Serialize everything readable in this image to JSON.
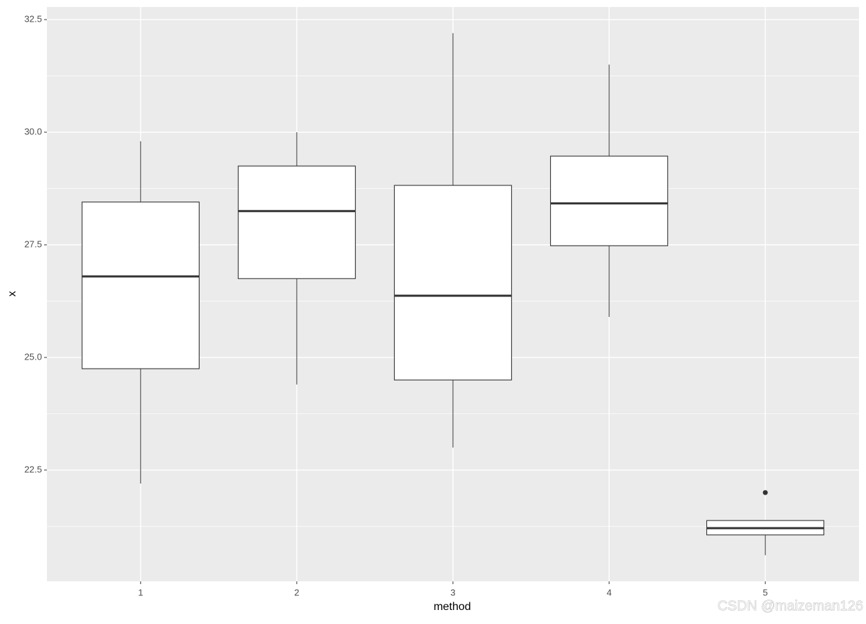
{
  "chart_data": {
    "type": "boxplot",
    "x_label": "method",
    "y_label": "x",
    "categories": [
      "1",
      "2",
      "3",
      "4",
      "5"
    ],
    "boxes": [
      {
        "whislo": 22.2,
        "q1": 24.75,
        "med": 26.8,
        "q3": 28.45,
        "whishi": 29.8
      },
      {
        "whislo": 24.4,
        "q1": 26.75,
        "med": 28.25,
        "q3": 29.25,
        "whishi": 30.0
      },
      {
        "whislo": 23.0,
        "q1": 24.5,
        "med": 26.37,
        "q3": 28.82,
        "whishi": 32.2
      },
      {
        "whislo": 25.9,
        "q1": 27.48,
        "med": 28.42,
        "q3": 29.47,
        "whishi": 31.5
      },
      {
        "whislo": 20.61,
        "q1": 21.06,
        "med": 21.21,
        "q3": 21.38,
        "whishi": 21.38,
        "outliers": [
          22.0
        ]
      }
    ],
    "ylim": [
      20.03,
      32.78
    ],
    "yticks": [
      {
        "value": 22.5,
        "label": "22.5"
      },
      {
        "value": 25,
        "label": "25.0"
      },
      {
        "value": 27.5,
        "label": "27.5"
      },
      {
        "value": 30,
        "label": "30.0"
      },
      {
        "value": 32.5,
        "label": "32.5"
      }
    ],
    "yminor": [
      21.25,
      23.75,
      26.25,
      28.75,
      31.25
    ],
    "grid": true,
    "box_fill": "#ffffff",
    "line_color": "#333333",
    "panel_color": "#ebebeb",
    "annotation": "CSDN @maizeman126"
  }
}
